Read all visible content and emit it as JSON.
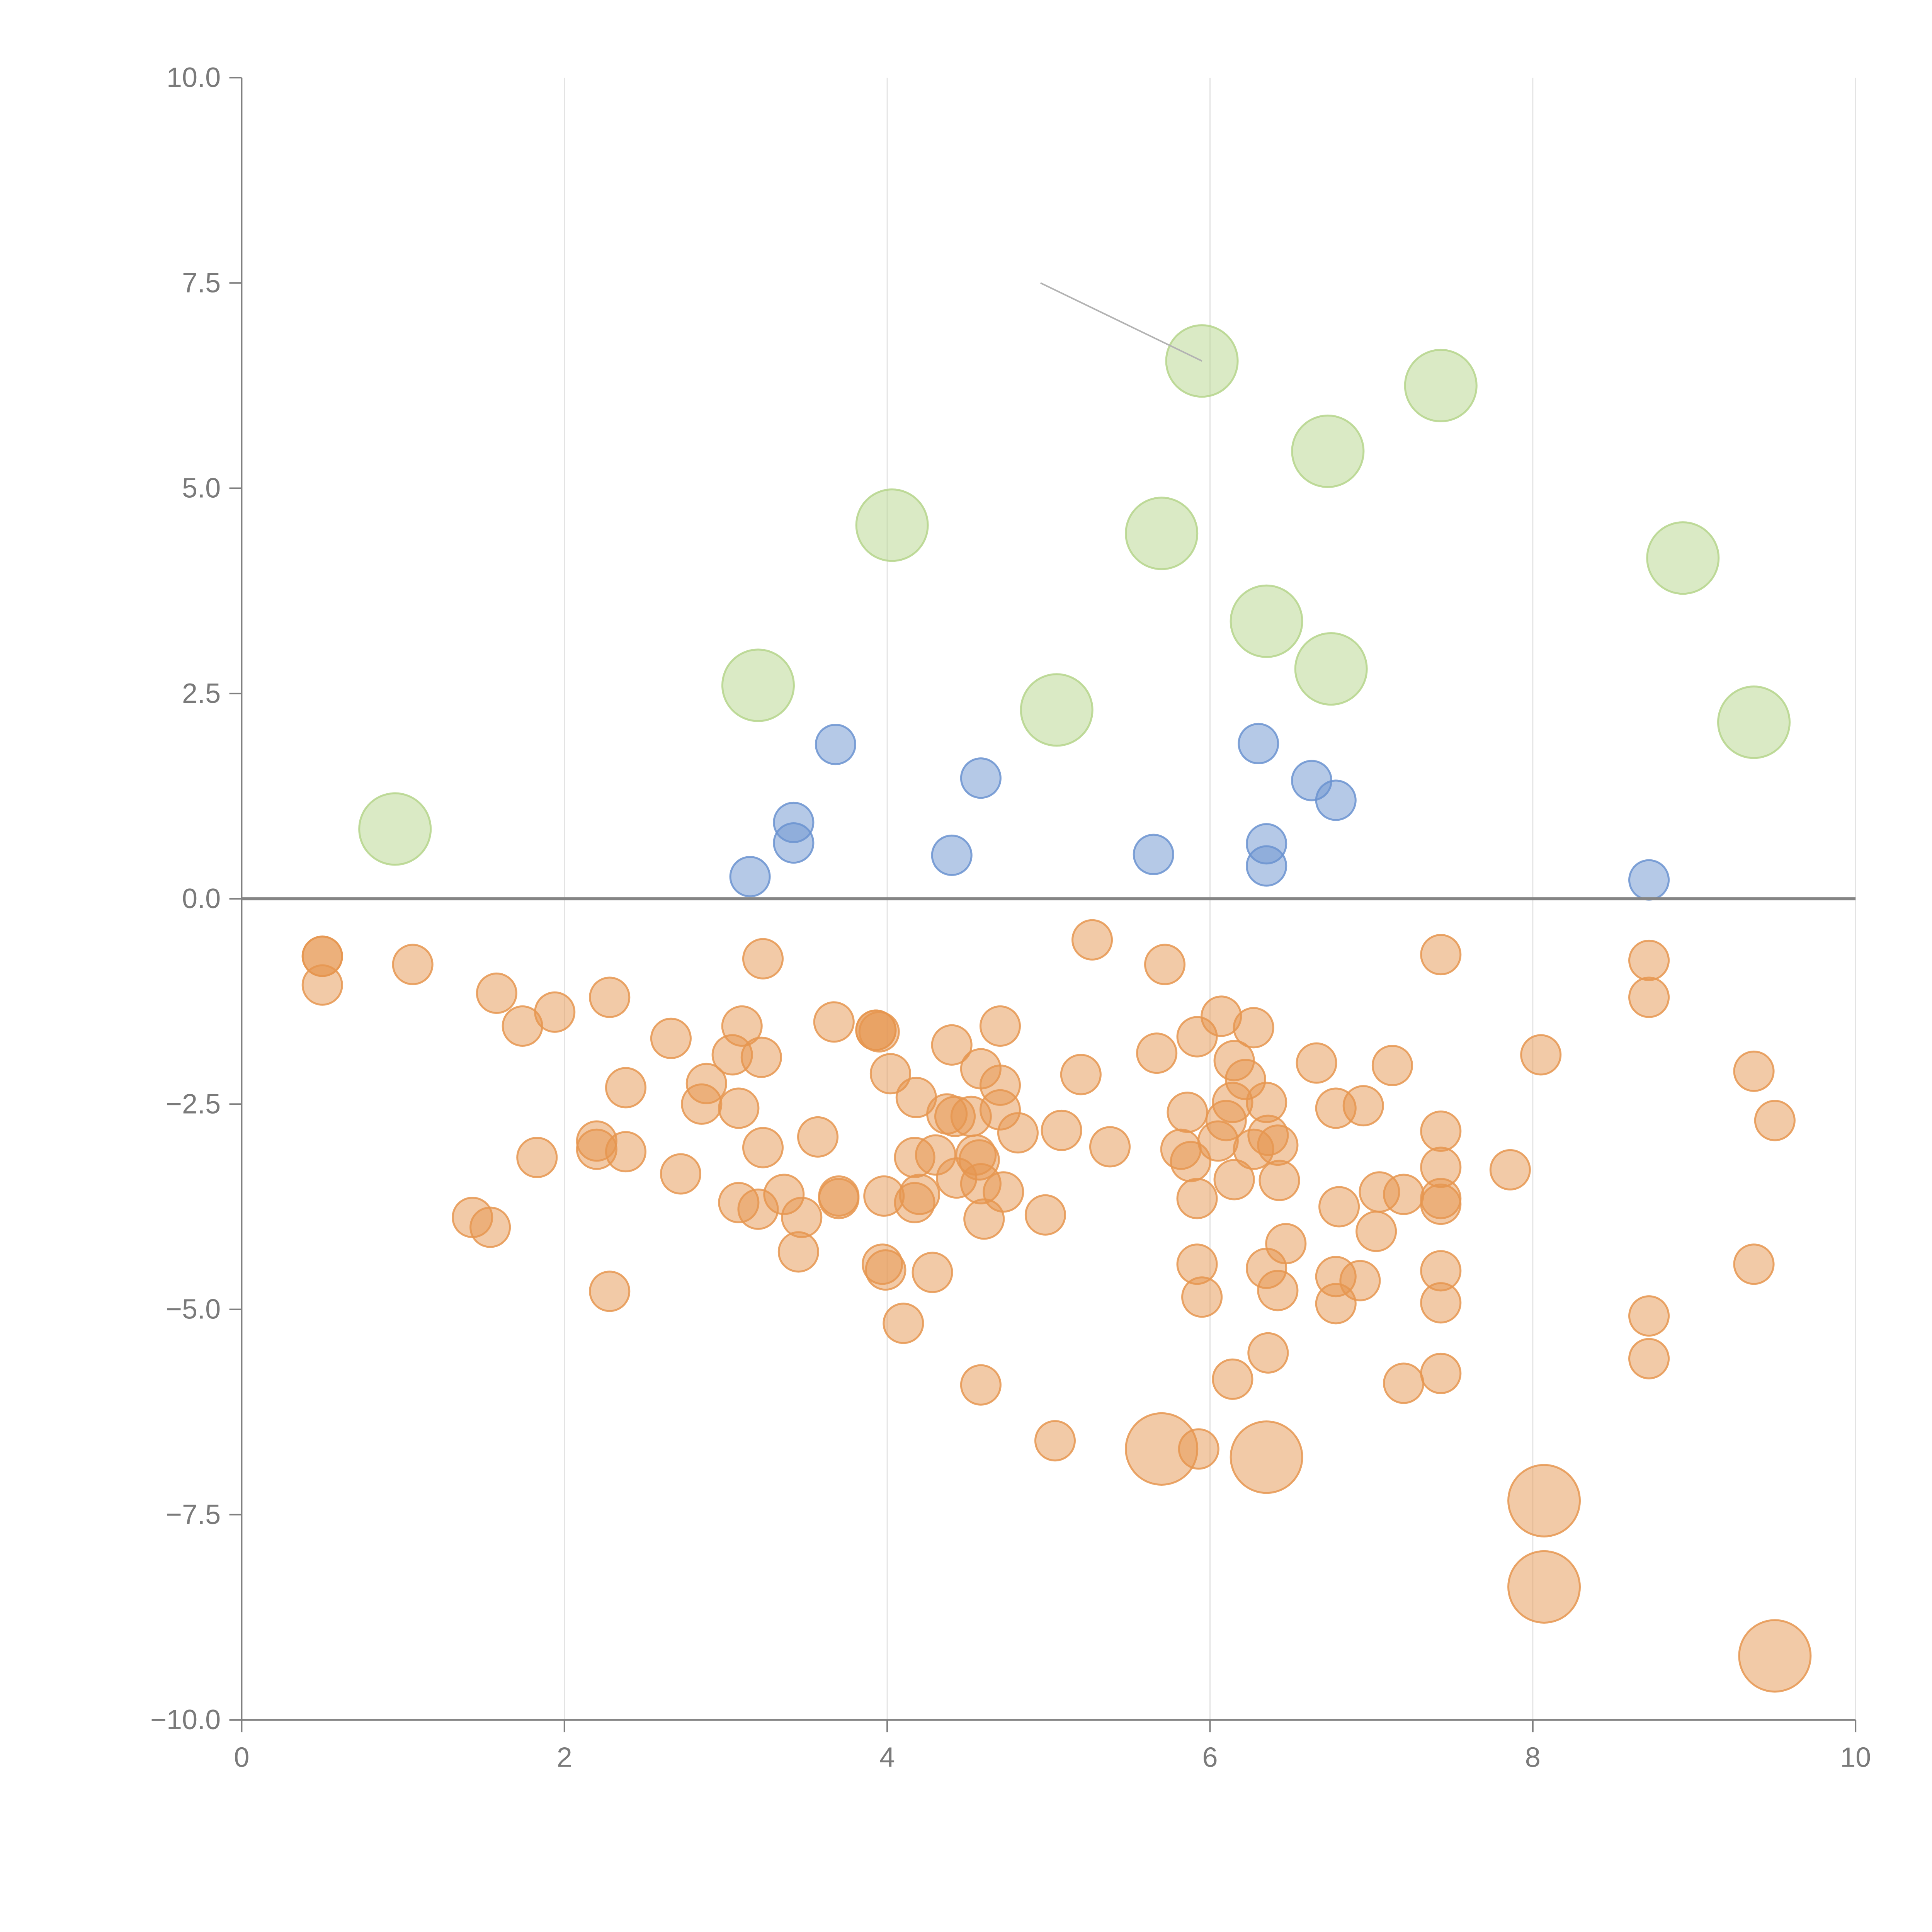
{
  "chart_data": {
    "type": "scatter",
    "title": "",
    "xlabel": "",
    "ylabel": "",
    "xlim": [
      0,
      10
    ],
    "ylim": [
      -10,
      10
    ],
    "x_ticks": [
      0,
      2,
      4,
      6,
      8,
      10
    ],
    "x_tick_labels": [
      "0",
      "2",
      "4",
      "6",
      "8",
      "10"
    ],
    "y_ticks": [
      10,
      7.5,
      5,
      2.5,
      0,
      -2.5,
      -5,
      -7.5,
      -10
    ],
    "y_tick_labels": [
      "10.0",
      "7.5",
      "5.0",
      "2.5",
      "0.0",
      "−2.5",
      "−5.0",
      "−7.5",
      "−10.0"
    ],
    "grid": "vertical lines at x ticks",
    "reference_line": {
      "y": 0
    },
    "colors": {
      "green": "#b5d58b",
      "blue": "#6b93d0",
      "orange": "#e69650",
      "axis": "#7f7f7f",
      "grid": "#e3e3e3"
    },
    "annotations": [
      {
        "from": [
          4.95,
          7.5
        ],
        "to": [
          5.95,
          6.55
        ],
        "color": "#b3b3b3"
      }
    ],
    "series": [
      {
        "color": "green",
        "size": "large",
        "points": [
          [
            0.95,
            0.85
          ],
          [
            3.2,
            2.6
          ],
          [
            4.03,
            4.55
          ],
          [
            5.05,
            2.3
          ],
          [
            5.7,
            4.45
          ],
          [
            5.95,
            6.55
          ],
          [
            6.35,
            3.38
          ],
          [
            6.73,
            5.45
          ],
          [
            6.75,
            2.8
          ],
          [
            7.43,
            6.25
          ],
          [
            8.93,
            4.15
          ],
          [
            9.37,
            2.15
          ]
        ]
      },
      {
        "color": "blue",
        "size": "small",
        "points": [
          [
            3.15,
            0.27
          ],
          [
            3.42,
            0.93
          ],
          [
            3.42,
            0.68
          ],
          [
            3.68,
            1.88
          ],
          [
            4.4,
            0.53
          ],
          [
            4.58,
            1.47
          ],
          [
            5.65,
            0.54
          ],
          [
            6.3,
            1.89
          ],
          [
            6.35,
            0.67
          ],
          [
            6.35,
            0.4
          ],
          [
            6.63,
            1.44
          ],
          [
            6.78,
            1.2
          ],
          [
            8.72,
            0.23
          ]
        ]
      },
      {
        "color": "orange",
        "size": "small",
        "points": [
          [
            0.5,
            -0.7
          ],
          [
            0.5,
            -0.7
          ],
          [
            0.5,
            -1.05
          ],
          [
            1.06,
            -0.8
          ],
          [
            1.58,
            -1.15
          ],
          [
            1.74,
            -1.55
          ],
          [
            1.94,
            -1.38
          ],
          [
            1.83,
            -3.15
          ],
          [
            1.43,
            -3.88
          ],
          [
            1.54,
            -4.0
          ],
          [
            2.28,
            -1.2
          ],
          [
            2.38,
            -2.3
          ],
          [
            2.2,
            -2.95
          ],
          [
            2.2,
            -3.05
          ],
          [
            2.38,
            -3.08
          ],
          [
            2.28,
            -4.78
          ],
          [
            2.66,
            -1.7
          ],
          [
            2.72,
            -3.35
          ],
          [
            2.85,
            -2.5
          ],
          [
            2.88,
            -2.25
          ],
          [
            3.04,
            -1.9
          ],
          [
            3.1,
            -1.55
          ],
          [
            3.22,
            -1.93
          ],
          [
            3.23,
            -0.73
          ],
          [
            3.08,
            -2.55
          ],
          [
            3.23,
            -3.03
          ],
          [
            3.08,
            -3.7
          ],
          [
            3.2,
            -3.78
          ],
          [
            3.36,
            -3.6
          ],
          [
            3.47,
            -3.88
          ],
          [
            3.45,
            -4.3
          ],
          [
            3.57,
            -2.9
          ],
          [
            3.67,
            -1.5
          ],
          [
            3.7,
            -3.62
          ],
          [
            3.7,
            -3.65
          ],
          [
            3.93,
            -1.6
          ],
          [
            3.93,
            -1.6
          ],
          [
            3.95,
            -1.62
          ],
          [
            4.02,
            -2.13
          ],
          [
            3.98,
            -3.62
          ],
          [
            3.97,
            -4.45
          ],
          [
            3.99,
            -4.52
          ],
          [
            4.1,
            -5.17
          ],
          [
            4.18,
            -2.42
          ],
          [
            4.17,
            -3.15
          ],
          [
            4.2,
            -3.6
          ],
          [
            4.17,
            -3.7
          ],
          [
            4.28,
            -4.55
          ],
          [
            4.4,
            -1.78
          ],
          [
            4.3,
            -3.12
          ],
          [
            4.37,
            -2.62
          ],
          [
            4.42,
            -2.65
          ],
          [
            4.43,
            -3.4
          ],
          [
            4.52,
            -2.65
          ],
          [
            4.55,
            -3.12
          ],
          [
            4.58,
            -2.07
          ],
          [
            4.57,
            -3.18
          ],
          [
            4.58,
            -3.47
          ],
          [
            4.6,
            -3.9
          ],
          [
            4.58,
            -5.92
          ],
          [
            4.7,
            -1.55
          ],
          [
            4.7,
            -2.27
          ],
          [
            4.7,
            -2.57
          ],
          [
            4.72,
            -3.57
          ],
          [
            4.81,
            -2.85
          ],
          [
            4.98,
            -3.85
          ],
          [
            5.08,
            -2.82
          ],
          [
            5.04,
            -6.6
          ],
          [
            5.2,
            -2.14
          ],
          [
            5.27,
            -0.5
          ],
          [
            5.38,
            -3.02
          ],
          [
            5.67,
            -1.88
          ],
          [
            5.72,
            -0.8
          ],
          [
            5.7,
            -6.7
          ],
          [
            5.82,
            -3.05
          ],
          [
            5.86,
            -2.6
          ],
          [
            5.88,
            -3.2
          ],
          [
            5.92,
            -1.68
          ],
          [
            5.92,
            -3.65
          ],
          [
            5.92,
            -4.45
          ],
          [
            5.95,
            -4.85
          ],
          [
            5.93,
            -6.7
          ],
          [
            6.05,
            -2.95
          ],
          [
            6.07,
            -1.43
          ],
          [
            6.1,
            -2.7
          ],
          [
            6.15,
            -1.97
          ],
          [
            6.14,
            -2.48
          ],
          [
            6.15,
            -3.42
          ],
          [
            6.14,
            -5.85
          ],
          [
            6.22,
            -2.2
          ],
          [
            6.27,
            -1.57
          ],
          [
            6.27,
            -3.05
          ],
          [
            6.35,
            -2.48
          ],
          [
            6.36,
            -2.88
          ],
          [
            6.35,
            -4.5
          ],
          [
            6.36,
            -5.53
          ],
          [
            6.35,
            -6.8
          ],
          [
            6.42,
            -3.0
          ],
          [
            6.43,
            -3.43
          ],
          [
            6.42,
            -4.77
          ],
          [
            6.47,
            -4.2
          ],
          [
            6.66,
            -2.0
          ],
          [
            6.78,
            -2.55
          ],
          [
            6.8,
            -3.75
          ],
          [
            6.78,
            -4.6
          ],
          [
            6.78,
            -4.93
          ],
          [
            6.95,
            -2.52
          ],
          [
            6.93,
            -4.65
          ],
          [
            7.05,
            -3.57
          ],
          [
            7.03,
            -4.05
          ],
          [
            7.13,
            -2.03
          ],
          [
            7.2,
            -3.6
          ],
          [
            7.2,
            -5.9
          ],
          [
            7.43,
            -0.68
          ],
          [
            7.43,
            -2.83
          ],
          [
            7.43,
            -3.27
          ],
          [
            7.43,
            -3.65
          ],
          [
            7.43,
            -3.72
          ],
          [
            7.43,
            -4.53
          ],
          [
            7.43,
            -4.92
          ],
          [
            7.43,
            -5.78
          ],
          [
            7.86,
            -3.3
          ],
          [
            8.05,
            -1.9
          ],
          [
            8.07,
            -7.33
          ],
          [
            8.07,
            -8.38
          ],
          [
            8.72,
            -0.75
          ],
          [
            8.72,
            -1.2
          ],
          [
            8.72,
            -5.08
          ],
          [
            8.72,
            -5.6
          ],
          [
            9.37,
            -2.1
          ],
          [
            9.37,
            -4.45
          ],
          [
            9.5,
            -2.7
          ],
          [
            9.5,
            -9.22
          ]
        ],
        "large_points": [
          [
            5.7,
            -6.7
          ],
          [
            6.35,
            -6.8
          ],
          [
            8.07,
            -7.33
          ],
          [
            8.07,
            -8.38
          ],
          [
            9.5,
            -9.22
          ]
        ]
      }
    ]
  }
}
